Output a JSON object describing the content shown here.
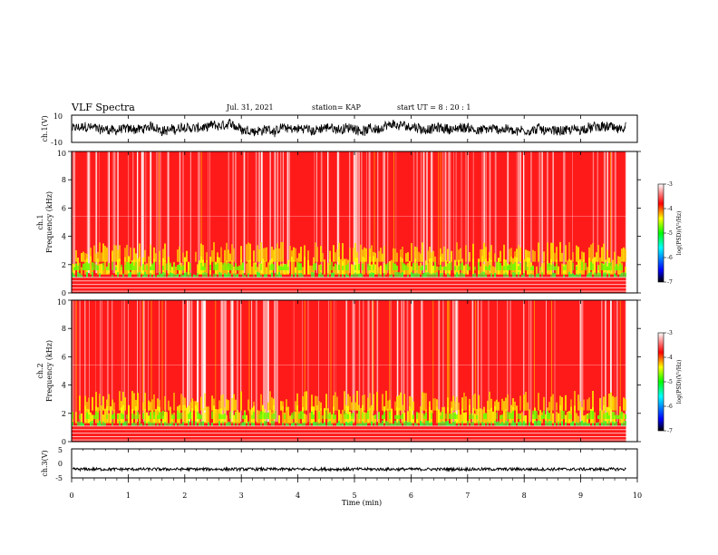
{
  "header": {
    "title": "VLF Spectra",
    "date": "Jul. 31, 2021",
    "station": "station= KAP",
    "start": "start UT = 8 : 20 : 1"
  },
  "colors": {
    "background": "#ffffff",
    "axis": "#000000",
    "colormap": [
      "#000000",
      "#0000ff",
      "#00ffff",
      "#00ff00",
      "#ffff00",
      "#ff0000",
      "#ffffff"
    ]
  },
  "chart_data": [
    {
      "type": "line",
      "panel": "ch1-waveform",
      "ylabel": "ch.1(V)",
      "ylim": [
        -10,
        10
      ],
      "yticks": [
        10,
        -10
      ],
      "xlim": [
        0,
        10
      ],
      "description_values": {
        "mean": 0,
        "amplitude_min": -5,
        "amplitude_max": 5
      }
    },
    {
      "type": "heatmap",
      "panel": "ch1-spectrogram",
      "ylabel": "ch.1 Frequency (kHz)",
      "xlim": [
        0,
        10
      ],
      "ylim": [
        0,
        10
      ],
      "yticks": [
        "0",
        "2",
        "4",
        "6",
        "8",
        "10"
      ],
      "data_end_min": 9.8,
      "colorbar": {
        "label": "log(PSD)(V²/Hz)",
        "range": [
          -7,
          -3
        ],
        "ticks": [
          "-3",
          "-4",
          "-5",
          "-6",
          "-7"
        ]
      }
    },
    {
      "type": "heatmap",
      "panel": "ch2-spectrogram",
      "ylabel": "ch.2 Frequency (kHz)",
      "xlim": [
        0,
        10
      ],
      "ylim": [
        0,
        10
      ],
      "yticks": [
        "0",
        "2",
        "4",
        "6",
        "8",
        "10"
      ],
      "data_end_min": 9.8,
      "colorbar": {
        "label": "log(PSD)(V²/Hz)",
        "range": [
          -7,
          -3
        ],
        "ticks": [
          "-3",
          "-4",
          "-5",
          "-6",
          "-7"
        ]
      }
    },
    {
      "type": "line",
      "panel": "ch3-waveform",
      "ylabel": "ch.3(V)",
      "ylim": [
        -5,
        5
      ],
      "yticks": [
        "5",
        "0",
        "-5"
      ],
      "xlim": [
        0,
        10
      ],
      "xlabel": "Time (min)",
      "xticks": [
        "0",
        "1",
        "2",
        "3",
        "4",
        "5",
        "6",
        "7",
        "8",
        "9",
        "10"
      ],
      "description_values": {
        "mean": -2,
        "amplitude_min": -2.5,
        "amplitude_max": -1.5
      }
    }
  ]
}
